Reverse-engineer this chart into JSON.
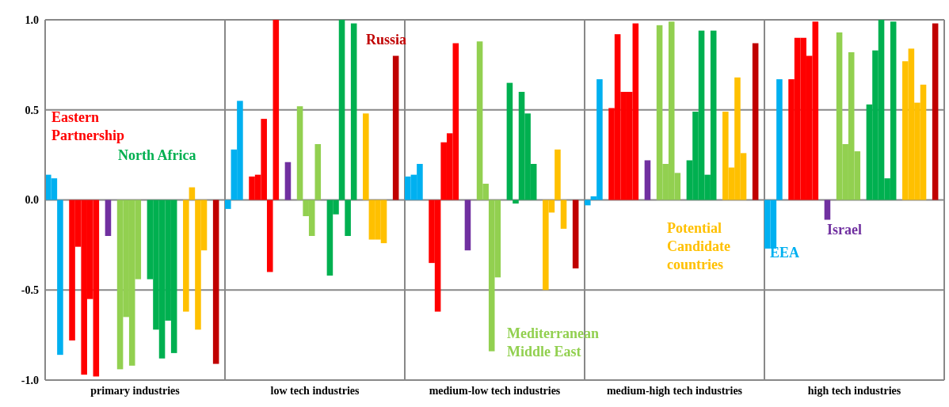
{
  "chart_data": {
    "type": "bar",
    "categories": [
      "primary industries",
      "low tech industries",
      "medium-low tech industries",
      "medium-high tech industries",
      "high tech industries"
    ],
    "series": [
      {
        "color": "#00b0f0",
        "values": [
          0.14,
          -0.05,
          0.13,
          -0.03,
          -0.27
        ]
      },
      {
        "color": "#00b0f0",
        "values": [
          0.12,
          0.28,
          0.14,
          0.02,
          -0.27
        ]
      },
      {
        "color": "#00b0f0",
        "values": [
          -0.86,
          0.55,
          0.2,
          0.67,
          0.67
        ]
      },
      {
        "color": "#ff0000",
        "values": [
          -0.78,
          0.13,
          -0.35,
          0.51,
          0.67
        ]
      },
      {
        "color": "#ff0000",
        "values": [
          -0.26,
          0.14,
          -0.62,
          0.92,
          0.9
        ]
      },
      {
        "color": "#ff0000",
        "values": [
          -0.97,
          0.45,
          0.32,
          0.6,
          0.9
        ]
      },
      {
        "color": "#ff0000",
        "values": [
          -0.55,
          -0.4,
          0.37,
          0.6,
          0.8
        ]
      },
      {
        "color": "#ff0000",
        "values": [
          -0.98,
          1.0,
          0.87,
          0.98,
          0.99
        ]
      },
      {
        "color": "#7030a0",
        "values": [
          -0.2,
          0.21,
          -0.28,
          0.22,
          -0.11
        ]
      },
      {
        "color": "#92d050",
        "values": [
          -0.94,
          0.52,
          0.88,
          0.97,
          0.93
        ]
      },
      {
        "color": "#92d050",
        "values": [
          -0.65,
          -0.09,
          0.09,
          0.2,
          0.31
        ]
      },
      {
        "color": "#92d050",
        "values": [
          -0.92,
          -0.2,
          -0.84,
          0.99,
          0.82
        ]
      },
      {
        "color": "#92d050",
        "values": [
          -0.44,
          0.31,
          -0.43,
          0.15,
          0.27
        ]
      },
      {
        "color": "#00b050",
        "values": [
          -0.44,
          -0.42,
          0.65,
          0.22,
          0.53
        ]
      },
      {
        "color": "#00b050",
        "values": [
          -0.72,
          -0.08,
          -0.02,
          0.49,
          0.83
        ]
      },
      {
        "color": "#00b050",
        "values": [
          -0.88,
          1.0,
          0.6,
          0.94,
          1.0
        ]
      },
      {
        "color": "#00b050",
        "values": [
          -0.67,
          -0.2,
          0.48,
          0.14,
          0.12
        ]
      },
      {
        "color": "#00b050",
        "values": [
          -0.85,
          0.98,
          0.2,
          0.94,
          0.99
        ]
      },
      {
        "color": "#ffc000",
        "values": [
          -0.62,
          0.48,
          -0.5,
          0.49,
          0.77
        ]
      },
      {
        "color": "#ffc000",
        "values": [
          0.07,
          -0.22,
          -0.07,
          0.18,
          0.84
        ]
      },
      {
        "color": "#ffc000",
        "values": [
          -0.72,
          -0.22,
          0.28,
          0.68,
          0.54
        ]
      },
      {
        "color": "#ffc000",
        "values": [
          -0.28,
          -0.24,
          -0.16,
          0.26,
          0.64
        ]
      },
      {
        "color": "#c00000",
        "values": [
          -0.91,
          0.8,
          -0.38,
          0.87,
          0.98
        ]
      }
    ],
    "ylim": [
      -1,
      1
    ],
    "yticks": [
      {
        "value": -1,
        "label": "-1.0"
      },
      {
        "value": -0.5,
        "label": "-0.5"
      },
      {
        "value": 0,
        "label": "0.0"
      },
      {
        "value": 0.5,
        "label": "0.5"
      },
      {
        "value": 1,
        "label": "1.0"
      }
    ],
    "grid": true,
    "legend": false,
    "annotations": [
      "EEA",
      "Eastern Partnership",
      "Israel",
      "Mediterranean Middle East",
      "North Africa",
      "Potential Candidate countries",
      "Russia"
    ]
  }
}
